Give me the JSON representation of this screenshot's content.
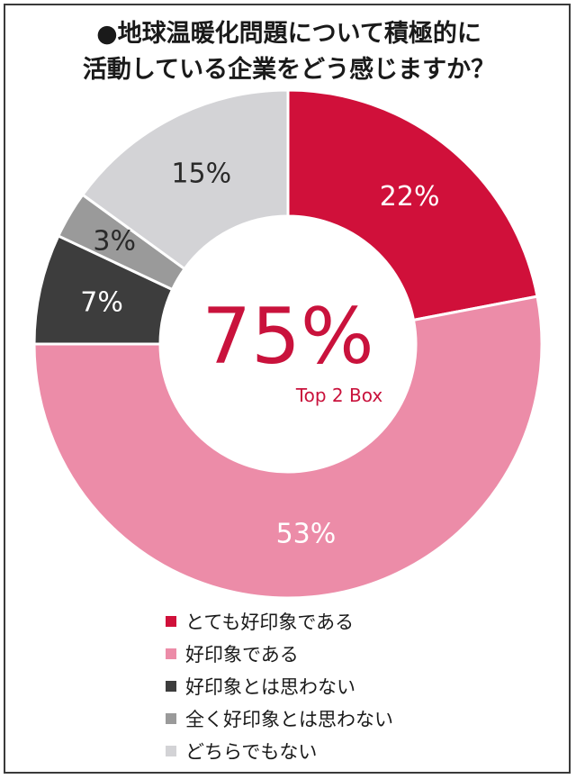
{
  "title_lines": [
    "●地球温暖化問題について積極的に",
    "活動している企業をどう感じますか？"
  ],
  "center": {
    "value": "75%",
    "label": "Top 2 Box"
  },
  "chart_data": {
    "type": "pie",
    "title": "●地球温暖化問題について積極的に活動している企業をどう感じますか？",
    "categories": [
      "とても好印象である",
      "好印象である",
      "好印象とは思わない",
      "全く好印象とは思わない",
      "どちらでもない"
    ],
    "values": [
      22,
      53,
      7,
      3,
      15
    ],
    "labels": [
      "22%",
      "53%",
      "7%",
      "3%",
      "15%"
    ],
    "colors": [
      "#d0103a",
      "#ec8ca8",
      "#3d3d3d",
      "#9a9a9a",
      "#d3d3d6"
    ],
    "label_colors": [
      "#ffffff",
      "#ffffff",
      "#ffffff",
      "#2a2a2a",
      "#2a2a2a"
    ],
    "donut": true,
    "legend_position": "bottom"
  },
  "legend_title": ""
}
